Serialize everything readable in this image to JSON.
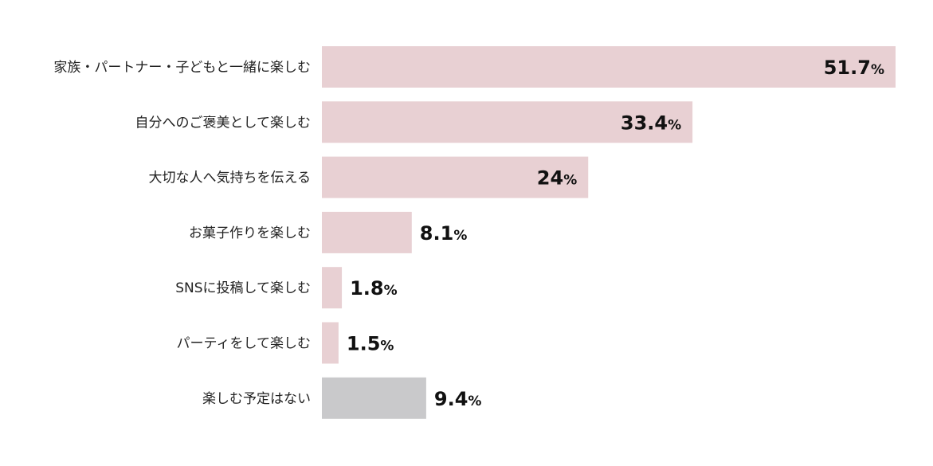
{
  "chart_data": {
    "type": "bar",
    "orientation": "horizontal",
    "categories": [
      "家族・パートナー・子どもと一緒に楽しむ",
      "自分へのご褒美として楽しむ",
      "大切な人へ気持ちを伝える",
      "お菓子作りを楽しむ",
      "SNSに投稿して楽しむ",
      "パーティをして楽しむ",
      "楽しむ予定はない"
    ],
    "values": [
      51.7,
      33.4,
      24,
      8.1,
      1.8,
      1.5,
      9.4
    ],
    "value_labels": [
      "51.7",
      "33.4",
      "24",
      "8.1",
      "1.8",
      "1.5",
      "9.4"
    ],
    "unit": "%",
    "colors": [
      "#e8d0d3",
      "#e8d0d3",
      "#e8d0d3",
      "#e8d0d3",
      "#e8d0d3",
      "#e8d0d3",
      "#c9c9cb"
    ],
    "xlim": [
      0,
      51.7
    ],
    "grid": false,
    "legend": "none"
  }
}
